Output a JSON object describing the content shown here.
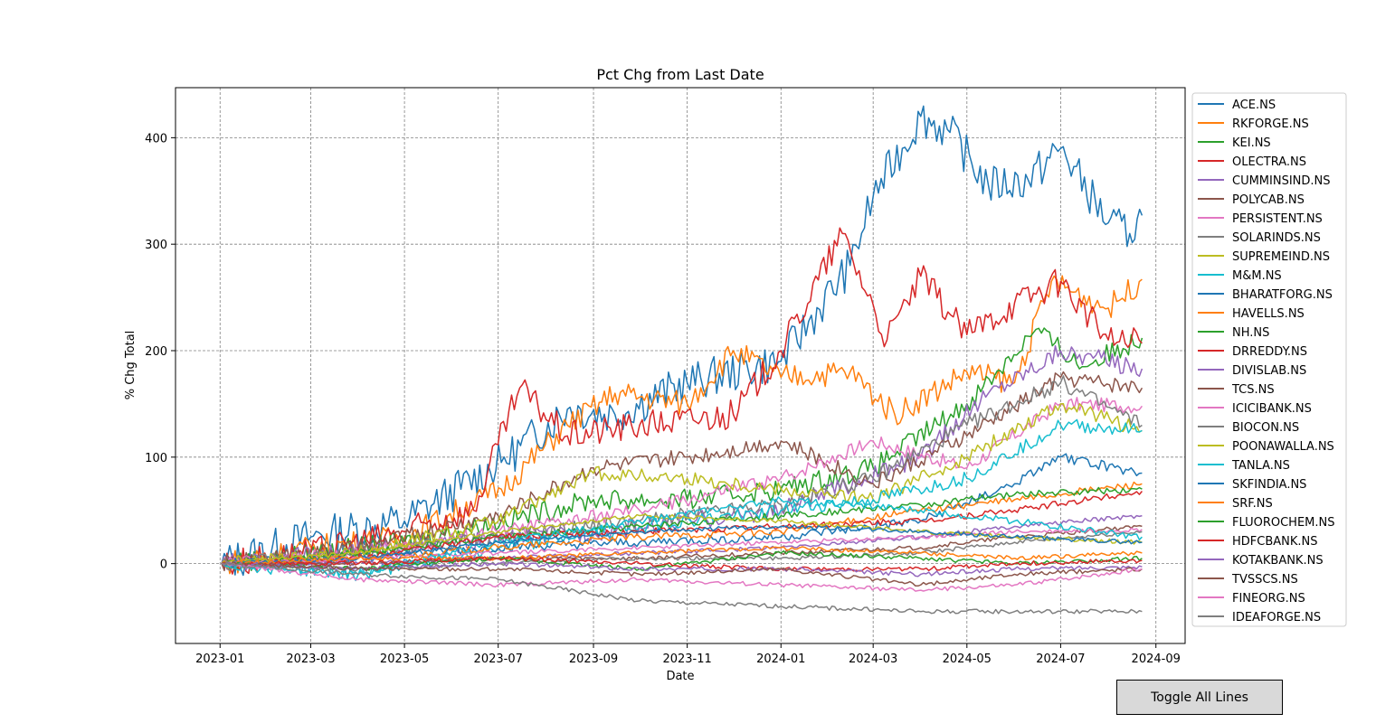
{
  "chart_data": {
    "type": "line",
    "title": "Pct Chg from Last Date",
    "xlabel": "Date",
    "ylabel": "% Chg Total",
    "xlim": [
      "2022-12-03",
      "2024-09-20"
    ],
    "ylim": [
      -75,
      447
    ],
    "xticks": [
      "2023-01",
      "2023-03",
      "2023-05",
      "2023-07",
      "2023-09",
      "2023-11",
      "2024-01",
      "2024-03",
      "2024-05",
      "2024-07",
      "2024-09"
    ],
    "yticks": [
      0,
      100,
      200,
      300,
      400
    ],
    "grid": true,
    "legend_position": "outside-right",
    "series": [
      {
        "name": "ACE.NS",
        "color": "#1f77b4",
        "x": [
          "2023-01-02",
          "2023-03-01",
          "2023-05-01",
          "2023-07-03",
          "2023-08-15",
          "2023-09-15",
          "2023-11-01",
          "2024-01-01",
          "2024-02-15",
          "2024-03-01",
          "2024-04-01",
          "2024-04-20",
          "2024-05-15",
          "2024-06-10",
          "2024-07-01",
          "2024-08-01",
          "2024-08-15",
          "2024-08-23"
        ],
        "y": [
          0,
          25,
          40,
          95,
          145,
          140,
          170,
          190,
          280,
          345,
          420,
          405,
          355,
          360,
          390,
          320,
          310,
          327
        ]
      },
      {
        "name": "RKFORGE.NS",
        "color": "#ff7f0e",
        "x": [
          "2023-01-02",
          "2023-03-01",
          "2023-05-01",
          "2023-07-03",
          "2023-08-15",
          "2023-09-15",
          "2023-11-01",
          "2023-12-01",
          "2024-01-01",
          "2024-02-15",
          "2024-03-15",
          "2024-05-01",
          "2024-06-01",
          "2024-06-25",
          "2024-08-01",
          "2024-08-23"
        ],
        "y": [
          0,
          15,
          25,
          70,
          130,
          160,
          150,
          200,
          175,
          180,
          140,
          180,
          170,
          265,
          240,
          267
        ]
      },
      {
        "name": "KEI.NS",
        "color": "#2ca02c",
        "x": [
          "2023-01-02",
          "2023-03-01",
          "2023-05-01",
          "2023-07-03",
          "2023-09-01",
          "2023-11-01",
          "2024-01-01",
          "2024-03-01",
          "2024-05-01",
          "2024-06-15",
          "2024-07-15",
          "2024-08-23"
        ],
        "y": [
          0,
          10,
          20,
          40,
          60,
          60,
          70,
          90,
          150,
          220,
          185,
          212
        ]
      },
      {
        "name": "OLECTRA.NS",
        "color": "#d62728",
        "x": [
          "2023-01-02",
          "2023-03-01",
          "2023-05-01",
          "2023-06-15",
          "2023-07-15",
          "2023-08-15",
          "2023-10-01",
          "2023-12-01",
          "2024-01-01",
          "2024-02-10",
          "2024-03-10",
          "2024-04-01",
          "2024-05-01",
          "2024-06-01",
          "2024-07-01",
          "2024-08-01",
          "2024-08-23"
        ],
        "y": [
          0,
          10,
          30,
          50,
          165,
          120,
          130,
          140,
          200,
          310,
          210,
          270,
          215,
          245,
          265,
          210,
          207
        ]
      },
      {
        "name": "CUMMINSIND.NS",
        "color": "#9467bd",
        "x": [
          "2023-01-02",
          "2023-05-01",
          "2023-09-01",
          "2024-01-01",
          "2024-04-01",
          "2024-05-15",
          "2024-07-01",
          "2024-08-23"
        ],
        "y": [
          0,
          15,
          30,
          50,
          100,
          160,
          200,
          183
        ]
      },
      {
        "name": "POLYCAB.NS",
        "color": "#8c564b",
        "x": [
          "2023-01-02",
          "2023-04-01",
          "2023-07-01",
          "2023-09-01",
          "2023-11-01",
          "2024-01-01",
          "2024-03-01",
          "2024-05-01",
          "2024-07-01",
          "2024-08-23"
        ],
        "y": [
          0,
          15,
          45,
          90,
          100,
          115,
          75,
          120,
          175,
          165
        ]
      },
      {
        "name": "PERSISTENT.NS",
        "color": "#e377c2",
        "x": [
          "2023-01-02",
          "2023-04-01",
          "2023-07-01",
          "2023-10-01",
          "2024-01-01",
          "2024-03-01",
          "2024-05-01",
          "2024-07-01",
          "2024-08-23"
        ],
        "y": [
          0,
          10,
          30,
          50,
          80,
          115,
          90,
          150,
          148
        ]
      },
      {
        "name": "SOLARINDS.NS",
        "color": "#7f7f7f",
        "x": [
          "2023-01-02",
          "2023-04-01",
          "2023-07-01",
          "2023-10-01",
          "2024-01-01",
          "2024-03-01",
          "2024-05-01",
          "2024-07-01",
          "2024-08-23"
        ],
        "y": [
          0,
          10,
          25,
          40,
          55,
          80,
          130,
          170,
          130
        ]
      },
      {
        "name": "SUPREMEIND.NS",
        "color": "#bcbd22",
        "x": [
          "2023-01-02",
          "2023-04-01",
          "2023-07-01",
          "2023-09-01",
          "2023-11-01",
          "2024-01-01",
          "2024-03-01",
          "2024-05-01",
          "2024-07-01",
          "2024-08-23"
        ],
        "y": [
          0,
          10,
          40,
          85,
          80,
          70,
          60,
          100,
          150,
          125
        ]
      },
      {
        "name": "M&M.NS",
        "color": "#17becf",
        "x": [
          "2023-01-02",
          "2023-04-01",
          "2023-07-01",
          "2023-10-01",
          "2024-01-01",
          "2024-03-01",
          "2024-05-01",
          "2024-07-01",
          "2024-08-23"
        ],
        "y": [
          0,
          -10,
          15,
          35,
          50,
          60,
          80,
          130,
          125
        ]
      },
      {
        "name": "BHARATFORG.NS",
        "color": "#1f77b4",
        "x": [
          "2023-01-02",
          "2023-04-01",
          "2023-07-01",
          "2023-10-01",
          "2024-01-01",
          "2024-04-01",
          "2024-06-01",
          "2024-07-01",
          "2024-08-23"
        ],
        "y": [
          0,
          5,
          15,
          20,
          25,
          40,
          75,
          100,
          85
        ]
      },
      {
        "name": "HAVELLS.NS",
        "color": "#ff7f0e",
        "x": [
          "2023-01-02",
          "2023-04-01",
          "2023-07-01",
          "2023-10-01",
          "2024-01-01",
          "2024-04-01",
          "2024-06-01",
          "2024-08-23"
        ],
        "y": [
          0,
          5,
          15,
          25,
          30,
          50,
          60,
          75
        ]
      },
      {
        "name": "NH.NS",
        "color": "#2ca02c",
        "x": [
          "2023-01-02",
          "2023-04-01",
          "2023-07-01",
          "2023-10-01",
          "2024-01-01",
          "2024-04-01",
          "2024-06-01",
          "2024-08-23"
        ],
        "y": [
          0,
          10,
          25,
          35,
          45,
          55,
          65,
          70
        ]
      },
      {
        "name": "DRREDDY.NS",
        "color": "#d62728",
        "x": [
          "2023-01-02",
          "2023-04-01",
          "2023-07-01",
          "2023-10-01",
          "2024-01-01",
          "2024-04-01",
          "2024-06-01",
          "2024-08-23"
        ],
        "y": [
          0,
          5,
          25,
          30,
          35,
          40,
          50,
          68
        ]
      },
      {
        "name": "DIVISLAB.NS",
        "color": "#9467bd",
        "x": [
          "2023-01-02",
          "2023-04-01",
          "2023-07-01",
          "2023-10-01",
          "2024-01-01",
          "2024-04-01",
          "2024-06-01",
          "2024-08-23"
        ],
        "y": [
          0,
          0,
          5,
          10,
          15,
          25,
          35,
          45
        ]
      },
      {
        "name": "TCS.NS",
        "color": "#8c564b",
        "x": [
          "2023-01-02",
          "2023-04-01",
          "2023-07-01",
          "2023-10-01",
          "2024-01-01",
          "2024-04-01",
          "2024-06-01",
          "2024-08-23"
        ],
        "y": [
          0,
          0,
          5,
          5,
          10,
          15,
          25,
          35
        ]
      },
      {
        "name": "ICICIBANK.NS",
        "color": "#e377c2",
        "x": [
          "2023-01-02",
          "2023-04-01",
          "2023-07-01",
          "2023-10-01",
          "2024-01-01",
          "2024-04-01",
          "2024-06-01",
          "2024-08-23"
        ],
        "y": [
          0,
          5,
          10,
          15,
          20,
          25,
          30,
          32
        ]
      },
      {
        "name": "BIOCON.NS",
        "color": "#7f7f7f",
        "x": [
          "2023-01-02",
          "2023-04-01",
          "2023-07-01",
          "2023-10-01",
          "2024-01-01",
          "2024-04-01",
          "2024-06-01",
          "2024-08-23"
        ],
        "y": [
          0,
          -5,
          0,
          5,
          5,
          10,
          20,
          30
        ]
      },
      {
        "name": "POONAWALLA.NS",
        "color": "#bcbd22",
        "x": [
          "2023-01-02",
          "2023-04-01",
          "2023-07-01",
          "2023-10-01",
          "2024-01-01",
          "2024-04-01",
          "2024-06-01",
          "2024-08-23"
        ],
        "y": [
          0,
          10,
          30,
          45,
          40,
          30,
          25,
          20
        ]
      },
      {
        "name": "TANLA.NS",
        "color": "#17becf",
        "x": [
          "2023-01-02",
          "2023-04-01",
          "2023-07-01",
          "2023-10-01",
          "2024-01-01",
          "2024-04-01",
          "2024-06-01",
          "2024-08-23"
        ],
        "y": [
          0,
          -10,
          20,
          40,
          60,
          50,
          40,
          25
        ]
      },
      {
        "name": "SKFINDIA.NS",
        "color": "#1f77b4",
        "x": [
          "2023-01-02",
          "2023-04-01",
          "2023-07-01",
          "2023-10-01",
          "2024-01-01",
          "2024-04-01",
          "2024-06-01",
          "2024-08-23"
        ],
        "y": [
          0,
          5,
          20,
          30,
          35,
          30,
          25,
          20
        ]
      },
      {
        "name": "SRF.NS",
        "color": "#ff7f0e",
        "x": [
          "2023-01-02",
          "2023-04-01",
          "2023-07-01",
          "2023-10-01",
          "2024-01-01",
          "2024-04-01",
          "2024-06-01",
          "2024-08-23"
        ],
        "y": [
          0,
          5,
          5,
          10,
          15,
          10,
          5,
          10
        ]
      },
      {
        "name": "FLUOROCHEM.NS",
        "color": "#2ca02c",
        "x": [
          "2023-01-02",
          "2023-04-01",
          "2023-07-01",
          "2023-10-01",
          "2024-01-01",
          "2024-04-01",
          "2024-06-01",
          "2024-08-23"
        ],
        "y": [
          0,
          -5,
          5,
          -5,
          10,
          5,
          0,
          5
        ]
      },
      {
        "name": "HDFCBANK.NS",
        "color": "#d62728",
        "x": [
          "2023-01-02",
          "2023-04-01",
          "2023-07-01",
          "2023-10-01",
          "2024-01-01",
          "2024-04-01",
          "2024-06-01",
          "2024-08-23"
        ],
        "y": [
          0,
          0,
          5,
          0,
          -5,
          -5,
          0,
          3
        ]
      },
      {
        "name": "KOTAKBANK.NS",
        "color": "#9467bd",
        "x": [
          "2023-01-02",
          "2023-04-01",
          "2023-07-01",
          "2023-10-01",
          "2024-01-01",
          "2024-04-01",
          "2024-06-01",
          "2024-08-23"
        ],
        "y": [
          0,
          -5,
          0,
          -5,
          -5,
          -10,
          -5,
          -3
        ]
      },
      {
        "name": "TVSSCS.NS",
        "color": "#8c564b",
        "x": [
          "2023-01-02",
          "2023-04-01",
          "2023-07-01",
          "2023-10-01",
          "2024-01-01",
          "2024-04-01",
          "2024-06-01",
          "2024-08-23"
        ],
        "y": [
          0,
          -5,
          -5,
          -10,
          -5,
          -20,
          -10,
          -5
        ]
      },
      {
        "name": "FINEORG.NS",
        "color": "#e377c2",
        "x": [
          "2023-01-02",
          "2023-04-01",
          "2023-07-01",
          "2023-10-01",
          "2024-01-01",
          "2024-04-01",
          "2024-06-01",
          "2024-08-23"
        ],
        "y": [
          0,
          -15,
          -20,
          -15,
          -20,
          -25,
          -20,
          -5
        ]
      },
      {
        "name": "IDEAFORGE.NS",
        "color": "#7f7f7f",
        "x": [
          "2023-01-02",
          "2023-04-01",
          "2023-07-01",
          "2023-10-01",
          "2024-01-01",
          "2024-04-01",
          "2024-06-01",
          "2024-08-23"
        ],
        "y": [
          0,
          -10,
          -15,
          -35,
          -40,
          -45,
          -45,
          -45
        ]
      }
    ]
  },
  "controls": {
    "toggle_label": "Toggle All Lines"
  }
}
